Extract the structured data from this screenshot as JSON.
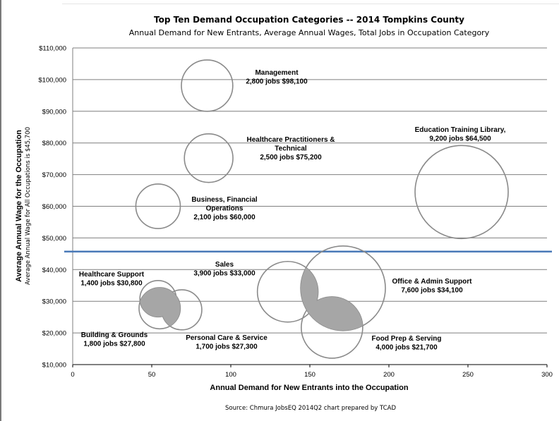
{
  "chart_data": {
    "type": "bubble",
    "title": "Top Ten Demand Occupation Categories -- 2014 Tompkins County",
    "subtitle": "Annual Demand for New Entrants, Average Annual Wages, Total Jobs in Occupation Category",
    "xlabel": "Annual Demand for New Entrants into the Occupation",
    "ylabel": "Average Annual Wage for the Occupation",
    "ylabel_secondary": "Average Annual Wage for All Occupations is $45,700",
    "source": "Source: Chmura JobsEQ 2014Q2 chart prepared by TCAD",
    "xlim": [
      0,
      300
    ],
    "ylim": [
      10000,
      110000
    ],
    "x_ticks": [
      0,
      50,
      100,
      150,
      200,
      250,
      300
    ],
    "x_tick_labels": [
      "0",
      "50",
      "100",
      "150",
      "200",
      "250",
      "300"
    ],
    "y_ticks": [
      10000,
      20000,
      30000,
      40000,
      50000,
      60000,
      70000,
      80000,
      90000,
      100000,
      110000
    ],
    "y_tick_labels": [
      "$10,000",
      "$20,000",
      "$30,000",
      "$40,000",
      "$50,000",
      "$60,000",
      "$70,000",
      "$80,000",
      "$90,000",
      "$100,000",
      "$110,000"
    ],
    "grid": true,
    "reference_line": {
      "y": 45700
    },
    "series": [
      {
        "name": "Management",
        "x": 85,
        "y": 98100,
        "jobs": 2800,
        "label_lines": [
          "Management",
          "2,800 jobs $98,100"
        ]
      },
      {
        "name": "Healthcare Practitioners & Technical",
        "x": 86,
        "y": 75200,
        "jobs": 2500,
        "label_lines": [
          "Healthcare Practitioners &",
          "Technical",
          "2,500 jobs $75,200"
        ]
      },
      {
        "name": "Business, Financial Operations",
        "x": 54,
        "y": 60000,
        "jobs": 2100,
        "label_lines": [
          "Business, Financial",
          "Operations",
          "2,100 jobs $60,000"
        ]
      },
      {
        "name": "Education Training Library,",
        "x": 246,
        "y": 64500,
        "jobs": 9200,
        "label_lines": [
          "Education Training Library,",
          "9,200 jobs $64,500"
        ]
      },
      {
        "name": "Sales",
        "x": 136,
        "y": 33000,
        "jobs": 3900,
        "label_lines": [
          "Sales",
          "3,900 jobs $33,000"
        ]
      },
      {
        "name": "Office & Admin Support",
        "x": 171,
        "y": 34100,
        "jobs": 7600,
        "label_lines": [
          "Office & Admin Support",
          "7,600 jobs $34,100"
        ]
      },
      {
        "name": "Food Prep & Serving",
        "x": 164,
        "y": 21700,
        "jobs": 4000,
        "label_lines": [
          "Food Prep & Serving",
          "4,000 jobs $21,700"
        ]
      },
      {
        "name": "Healthcare Support",
        "x": 54,
        "y": 30800,
        "jobs": 1400,
        "label_lines": [
          "Healthcare Support",
          "1,400 jobs $30,800"
        ]
      },
      {
        "name": "Building & Grounds",
        "x": 55,
        "y": 27800,
        "jobs": 1800,
        "label_lines": [
          "Building & Grounds",
          "1,800 jobs $27,800"
        ]
      },
      {
        "name": "Personal Care & Service",
        "x": 69,
        "y": 27300,
        "jobs": 1700,
        "label_lines": [
          "Personal Care & Service",
          "1,700 jobs $27,300"
        ]
      }
    ]
  }
}
